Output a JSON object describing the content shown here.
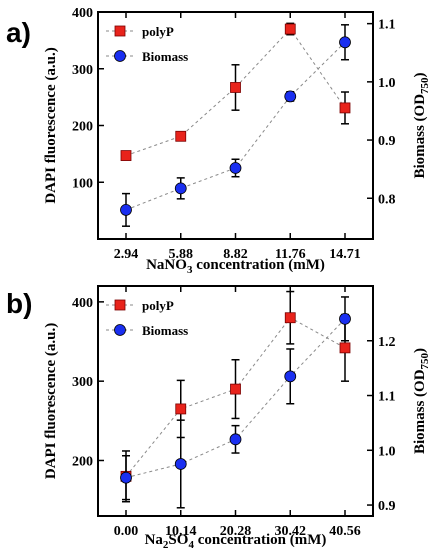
{
  "chart_data": [
    {
      "type": "scatter",
      "panel_label": "a)",
      "xlabel_main": "NaNO",
      "xlabel_sub": "3",
      "xlabel_rest": " concentration (mM)",
      "ylabel_left": "DAPI fluorescence (a.u.)",
      "ylabel_right_main": "Biomass (OD",
      "ylabel_right_sub": "750",
      "ylabel_right_end": ")",
      "categories": [
        "2.94",
        "5.88",
        "8.82",
        "11.76",
        "14.71"
      ],
      "ylim_left": [
        0,
        400
      ],
      "yticks_left": [
        100,
        200,
        300,
        400
      ],
      "ylim_right": [
        0.73,
        1.12
      ],
      "yticks_right": [
        0.8,
        0.9,
        1.0,
        1.1
      ],
      "legend": "top-left",
      "series": [
        {
          "name": "polyP",
          "axis": "left",
          "marker": "square",
          "color": "#e8231b",
          "values": [
            147,
            181,
            267,
            370,
            231
          ],
          "errors": [
            4,
            4,
            40,
            10,
            28
          ]
        },
        {
          "name": "Biomass",
          "axis": "right",
          "marker": "circle",
          "color": "#1a2ff0",
          "values": [
            0.78,
            0.817,
            0.852,
            0.975,
            1.068
          ],
          "errors": [
            0.028,
            0.018,
            0.015,
            0.008,
            0.03
          ]
        }
      ]
    },
    {
      "type": "scatter",
      "panel_label": "b)",
      "xlabel_main": "Na",
      "xlabel_sub": "2",
      "xlabel_rest": "SO",
      "xlabel_sub2": "4",
      "xlabel_rest2": " concentration (mM)",
      "ylabel_left": "DAPI fluorescence (a.u.)",
      "ylabel_right_main": "Biomass (OD",
      "ylabel_right_sub": "750",
      "ylabel_right_end": ")",
      "categories": [
        "0.00",
        "10.14",
        "20.28",
        "30.42",
        "40.56"
      ],
      "ylim_left": [
        130,
        420
      ],
      "yticks_left": [
        200,
        300,
        400
      ],
      "ylim_right": [
        0.88,
        1.3
      ],
      "yticks_right": [
        0.9,
        1.0,
        1.1,
        1.2
      ],
      "legend": "top-left",
      "series": [
        {
          "name": "polyP",
          "axis": "left",
          "marker": "square",
          "color": "#e8231b",
          "values": [
            180,
            265,
            290,
            380,
            342
          ],
          "errors": [
            32,
            36,
            37,
            33,
            42
          ]
        },
        {
          "name": "Biomass",
          "axis": "right",
          "marker": "circle",
          "color": "#1a2ff0",
          "values": [
            0.95,
            0.975,
            1.02,
            1.135,
            1.24
          ],
          "errors": [
            0.04,
            0.08,
            0.025,
            0.05,
            0.04
          ]
        }
      ]
    }
  ]
}
